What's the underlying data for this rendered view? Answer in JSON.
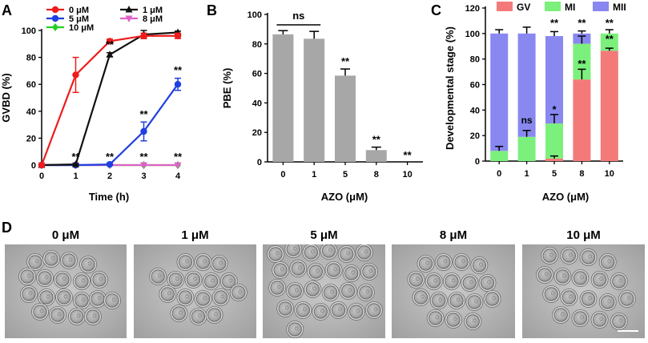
{
  "panel_letters": {
    "a": "A",
    "b": "B",
    "c": "C",
    "d": "D"
  },
  "colors": {
    "red": "#ee1c1c",
    "black": "#111111",
    "blue": "#1f3fe0",
    "green": "#22d022",
    "magenta": "#e060c8",
    "bar_gray": "#a7a7a7",
    "gv": "#f47a7a",
    "mi": "#7cf07c",
    "mii": "#8888f0"
  },
  "chart_data": [
    {
      "type": "line",
      "panel": "A",
      "ylabel": "GVBD (%)",
      "xlabel": "Time (h)",
      "x": [
        0,
        1,
        2,
        3,
        4
      ],
      "xlim": [
        0,
        4
      ],
      "ylim": [
        0,
        100
      ],
      "yticks": [
        0,
        20,
        40,
        60,
        80,
        100
      ],
      "legend_position": "top",
      "series": [
        {
          "name": "0 μM",
          "color": "#ee1c1c",
          "marker": "circle",
          "values": [
            0,
            67,
            92,
            96,
            96
          ],
          "err": [
            0,
            13,
            1.5,
            2,
            2
          ]
        },
        {
          "name": "1 μM",
          "color": "#111111",
          "marker": "triangle",
          "values": [
            0,
            0.5,
            82,
            97,
            98.5
          ],
          "err": [
            0,
            0.5,
            1.5,
            3,
            1
          ]
        },
        {
          "name": "5 μM",
          "color": "#1f3fe0",
          "marker": "circle",
          "values": [
            0,
            0,
            0.5,
            25,
            60
          ],
          "err": [
            0,
            0,
            0.5,
            7,
            4.5
          ]
        },
        {
          "name": "8 μM",
          "color": "#e060c8",
          "marker": "triangle-down",
          "values": [
            0,
            0,
            0,
            0,
            0
          ],
          "err": [
            0,
            0,
            0,
            0,
            0
          ]
        },
        {
          "name": "10 μM",
          "color": "#22d022",
          "marker": "diamond",
          "values": [
            0,
            0,
            0,
            0,
            0
          ],
          "err": [
            0,
            0,
            0,
            0,
            0
          ]
        }
      ],
      "annotations": [
        {
          "x": 1,
          "y": 0,
          "text": "**"
        },
        {
          "x": 2,
          "y": 87,
          "text": "**"
        },
        {
          "x": 2,
          "y": 0,
          "text": "**"
        },
        {
          "x": 3,
          "y": 35,
          "text": "**"
        },
        {
          "x": 3,
          "y": 0,
          "text": "**"
        },
        {
          "x": 4,
          "y": 68,
          "text": "**"
        },
        {
          "x": 4,
          "y": 0,
          "text": "**"
        }
      ]
    },
    {
      "type": "bar",
      "panel": "B",
      "ylabel": "PBE (%)",
      "xlabel": "AZO (μM)",
      "categories": [
        "0",
        "1",
        "5",
        "8",
        "10"
      ],
      "values": [
        86.5,
        83.5,
        58.5,
        8,
        0
      ],
      "err": [
        2.5,
        5,
        4.5,
        2,
        0
      ],
      "ylim": [
        0,
        100
      ],
      "yticks": [
        0,
        20,
        40,
        60,
        80,
        100
      ],
      "annotations": [
        {
          "category": "ns-bracket",
          "text": "ns"
        },
        {
          "category": "5",
          "text": "**"
        },
        {
          "category": "8",
          "text": "**"
        },
        {
          "category": "10",
          "text": "**"
        }
      ]
    },
    {
      "type": "bar",
      "stacked": true,
      "panel": "C",
      "ylabel": "Developmental stage (%)",
      "xlabel": "AZO (μM)",
      "categories": [
        "0",
        "1",
        "5",
        "8",
        "10"
      ],
      "ylim": [
        0,
        120
      ],
      "yticks": [
        0,
        20,
        40,
        60,
        80,
        100,
        120
      ],
      "legend_position": "top",
      "series": [
        {
          "name": "GV",
          "color": "#f47a7a",
          "values": [
            0,
            0,
            2,
            64,
            86.5
          ],
          "err": [
            0,
            0,
            2,
            8,
            2
          ]
        },
        {
          "name": "MI",
          "color": "#7cf07c",
          "values": [
            8,
            19,
            27.5,
            28,
            13.5
          ],
          "err": [
            3.5,
            5,
            7,
            6,
            3
          ]
        },
        {
          "name": "MII",
          "color": "#8888f0",
          "values": [
            92,
            81,
            68.5,
            8,
            0
          ],
          "err": [
            3,
            5,
            3.5,
            2,
            2.5
          ]
        }
      ],
      "annotations": [
        {
          "category": "1",
          "text": "ns"
        },
        {
          "category": "5",
          "text": "*"
        },
        {
          "category": "5",
          "text": "**"
        },
        {
          "category": "8",
          "text": "**"
        },
        {
          "category": "8",
          "text": "**"
        },
        {
          "category": "10",
          "text": "**"
        },
        {
          "category": "10",
          "text": "**"
        }
      ]
    }
  ],
  "micrographs": [
    {
      "label": "0 μM"
    },
    {
      "label": "1 μM"
    },
    {
      "label": "5 μM"
    },
    {
      "label": "8 μM"
    },
    {
      "label": "10 μM"
    }
  ]
}
